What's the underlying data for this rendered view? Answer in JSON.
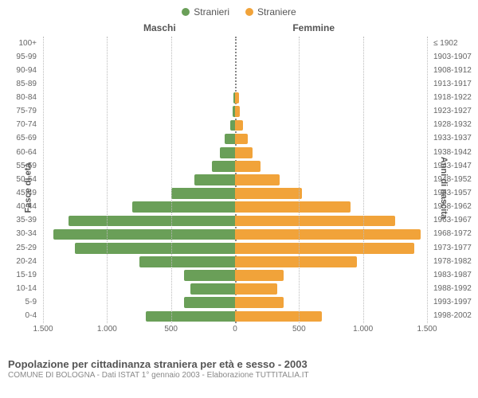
{
  "legend": {
    "male": {
      "label": "Stranieri",
      "color": "#6a9f58"
    },
    "female": {
      "label": "Straniere",
      "color": "#f1a33a"
    }
  },
  "headers": {
    "male": "Maschi",
    "female": "Femmine"
  },
  "axis": {
    "left_title": "Fasce di età",
    "right_title": "Anni di nascita",
    "x_max": 1500,
    "x_ticks": [
      {
        "label": "1.500",
        "value": 1500
      },
      {
        "label": "1.000",
        "value": 1000
      },
      {
        "label": "500",
        "value": 500
      },
      {
        "label": "0",
        "value": 0
      },
      {
        "label": "500",
        "value": -500
      },
      {
        "label": "1.000",
        "value": -1000
      },
      {
        "label": "1.500",
        "value": -1500
      }
    ]
  },
  "rows": [
    {
      "age": "100+",
      "birth": "≤ 1902",
      "m": 0,
      "f": 0
    },
    {
      "age": "95-99",
      "birth": "1903-1907",
      "m": 0,
      "f": 0
    },
    {
      "age": "90-94",
      "birth": "1908-1912",
      "m": 0,
      "f": 0
    },
    {
      "age": "85-89",
      "birth": "1913-1917",
      "m": 0,
      "f": 0
    },
    {
      "age": "80-84",
      "birth": "1918-1922",
      "m": 15,
      "f": 30
    },
    {
      "age": "75-79",
      "birth": "1923-1927",
      "m": 20,
      "f": 40
    },
    {
      "age": "70-74",
      "birth": "1928-1932",
      "m": 40,
      "f": 60
    },
    {
      "age": "65-69",
      "birth": "1933-1937",
      "m": 80,
      "f": 100
    },
    {
      "age": "60-64",
      "birth": "1938-1942",
      "m": 120,
      "f": 140
    },
    {
      "age": "55-59",
      "birth": "1943-1947",
      "m": 180,
      "f": 200
    },
    {
      "age": "50-54",
      "birth": "1948-1952",
      "m": 320,
      "f": 350
    },
    {
      "age": "45-49",
      "birth": "1953-1957",
      "m": 500,
      "f": 520
    },
    {
      "age": "40-44",
      "birth": "1958-1962",
      "m": 800,
      "f": 900
    },
    {
      "age": "35-39",
      "birth": "1963-1967",
      "m": 1300,
      "f": 1250
    },
    {
      "age": "30-34",
      "birth": "1968-1972",
      "m": 1420,
      "f": 1450
    },
    {
      "age": "25-29",
      "birth": "1973-1977",
      "m": 1250,
      "f": 1400
    },
    {
      "age": "20-24",
      "birth": "1978-1982",
      "m": 750,
      "f": 950
    },
    {
      "age": "15-19",
      "birth": "1983-1987",
      "m": 400,
      "f": 380
    },
    {
      "age": "10-14",
      "birth": "1988-1992",
      "m": 350,
      "f": 330
    },
    {
      "age": "5-9",
      "birth": "1993-1997",
      "m": 400,
      "f": 380
    },
    {
      "age": "0-4",
      "birth": "1998-2002",
      "m": 700,
      "f": 680
    }
  ],
  "footer": {
    "title": "Popolazione per cittadinanza straniera per età e sesso - 2003",
    "subtitle": "COMUNE DI BOLOGNA - Dati ISTAT 1° gennaio 2003 - Elaborazione TUTTITALIA.IT"
  },
  "style": {
    "grid_color": "#bbbbbb",
    "bg": "#ffffff",
    "text": "#666666"
  }
}
